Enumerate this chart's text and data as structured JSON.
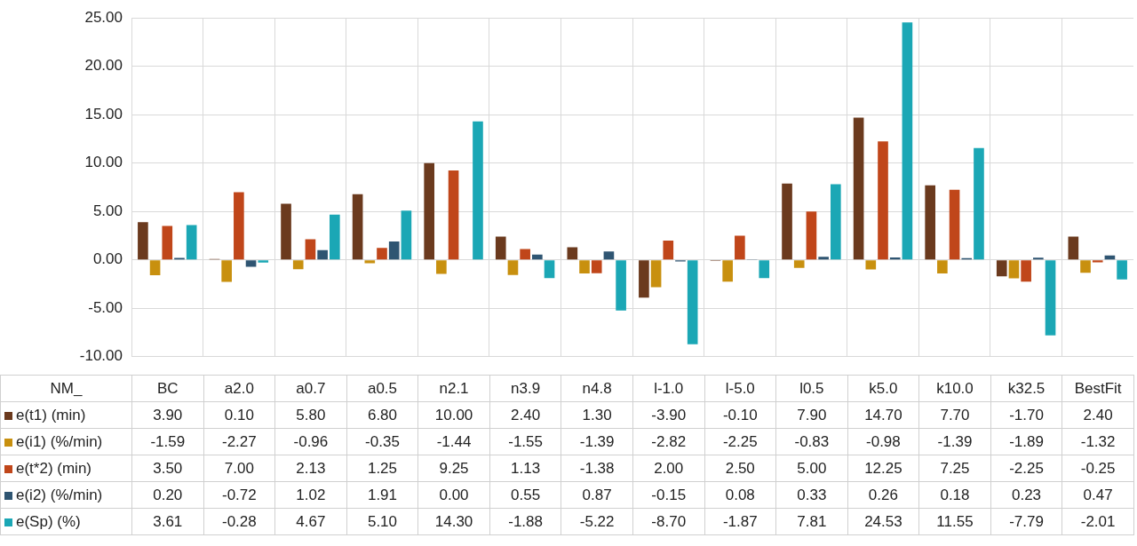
{
  "chart_data": {
    "type": "bar",
    "xlabel": "NM_",
    "categories": [
      "BC",
      "a2.0",
      "a0.7",
      "a0.5",
      "n2.1",
      "n3.9",
      "n4.8",
      "l-1.0",
      "l-5.0",
      "l0.5",
      "k5.0",
      "k10.0",
      "k32.5",
      "BestFit"
    ],
    "ylim": [
      -10,
      25
    ],
    "yticks": [
      {
        "value": -10,
        "label": "-10.00"
      },
      {
        "value": -5,
        "label": "-5.00"
      },
      {
        "value": 0,
        "label": "0.00"
      },
      {
        "value": 5,
        "label": "5.00"
      },
      {
        "value": 10,
        "label": "10.00"
      },
      {
        "value": 15,
        "label": "15.00"
      },
      {
        "value": 20,
        "label": "20.00"
      },
      {
        "value": 25,
        "label": "25.00"
      }
    ],
    "grid": true,
    "legend": "bottom",
    "series": [
      {
        "name": "e(t1) (min)",
        "color": "#6b3a1e",
        "values": [
          3.9,
          0.1,
          5.8,
          6.8,
          10,
          2.4,
          1.3,
          -3.9,
          -0.1,
          7.9,
          14.7,
          7.7,
          -1.7,
          2.4
        ],
        "value_labels": [
          "3.90",
          "0.10",
          "5.80",
          "6.80",
          "10.00",
          "2.40",
          "1.30",
          "-3.90",
          "-0.10",
          "7.90",
          "14.70",
          "7.70",
          "-1.70",
          "2.40"
        ]
      },
      {
        "name": "e(i1) (%/min)",
        "color": "#c8900f",
        "values": [
          -1.59,
          -2.27,
          -0.96,
          -0.35,
          -1.44,
          -1.55,
          -1.39,
          -2.82,
          -2.25,
          -0.83,
          -0.98,
          -1.39,
          -1.89,
          -1.32
        ],
        "value_labels": [
          "-1.59",
          "-2.27",
          "-0.96",
          "-0.35",
          "-1.44",
          "-1.55",
          "-1.39",
          "-2.82",
          "-2.25",
          "-0.83",
          "-0.98",
          "-1.39",
          "-1.89",
          "-1.32"
        ]
      },
      {
        "name": "e(t*2) (min)",
        "color": "#c0461a",
        "values": [
          3.5,
          7,
          2.13,
          1.25,
          9.25,
          1.13,
          -1.38,
          2,
          2.5,
          5,
          12.25,
          7.25,
          -2.25,
          -0.25
        ],
        "value_labels": [
          "3.50",
          "7.00",
          "2.13",
          "1.25",
          "9.25",
          "1.13",
          "-1.38",
          "2.00",
          "2.50",
          "5.00",
          "12.25",
          "7.25",
          "-2.25",
          "-0.25"
        ]
      },
      {
        "name": "e(i2) (%/min)",
        "color": "#2f5572",
        "values": [
          0.2,
          -0.72,
          1.02,
          1.91,
          0,
          0.55,
          0.87,
          -0.15,
          0.08,
          0.33,
          0.26,
          0.18,
          0.23,
          0.47
        ],
        "value_labels": [
          "0.20",
          "-0.72",
          "1.02",
          "1.91",
          "0.00",
          "0.55",
          "0.87",
          "-0.15",
          "0.08",
          "0.33",
          "0.26",
          "0.18",
          "0.23",
          "0.47"
        ]
      },
      {
        "name": "e(Sp) (%)",
        "color": "#1ba7b5",
        "values": [
          3.61,
          -0.28,
          4.67,
          5.1,
          14.3,
          -1.88,
          -5.22,
          -8.7,
          -1.87,
          7.81,
          24.53,
          11.55,
          -7.79,
          -2.01
        ],
        "value_labels": [
          "3.61",
          "-0.28",
          "4.67",
          "5.10",
          "14.30",
          "-1.88",
          "-5.22",
          "-8.70",
          "-1.87",
          "7.81",
          "24.53",
          "11.55",
          "-7.79",
          "-2.01"
        ]
      }
    ]
  }
}
